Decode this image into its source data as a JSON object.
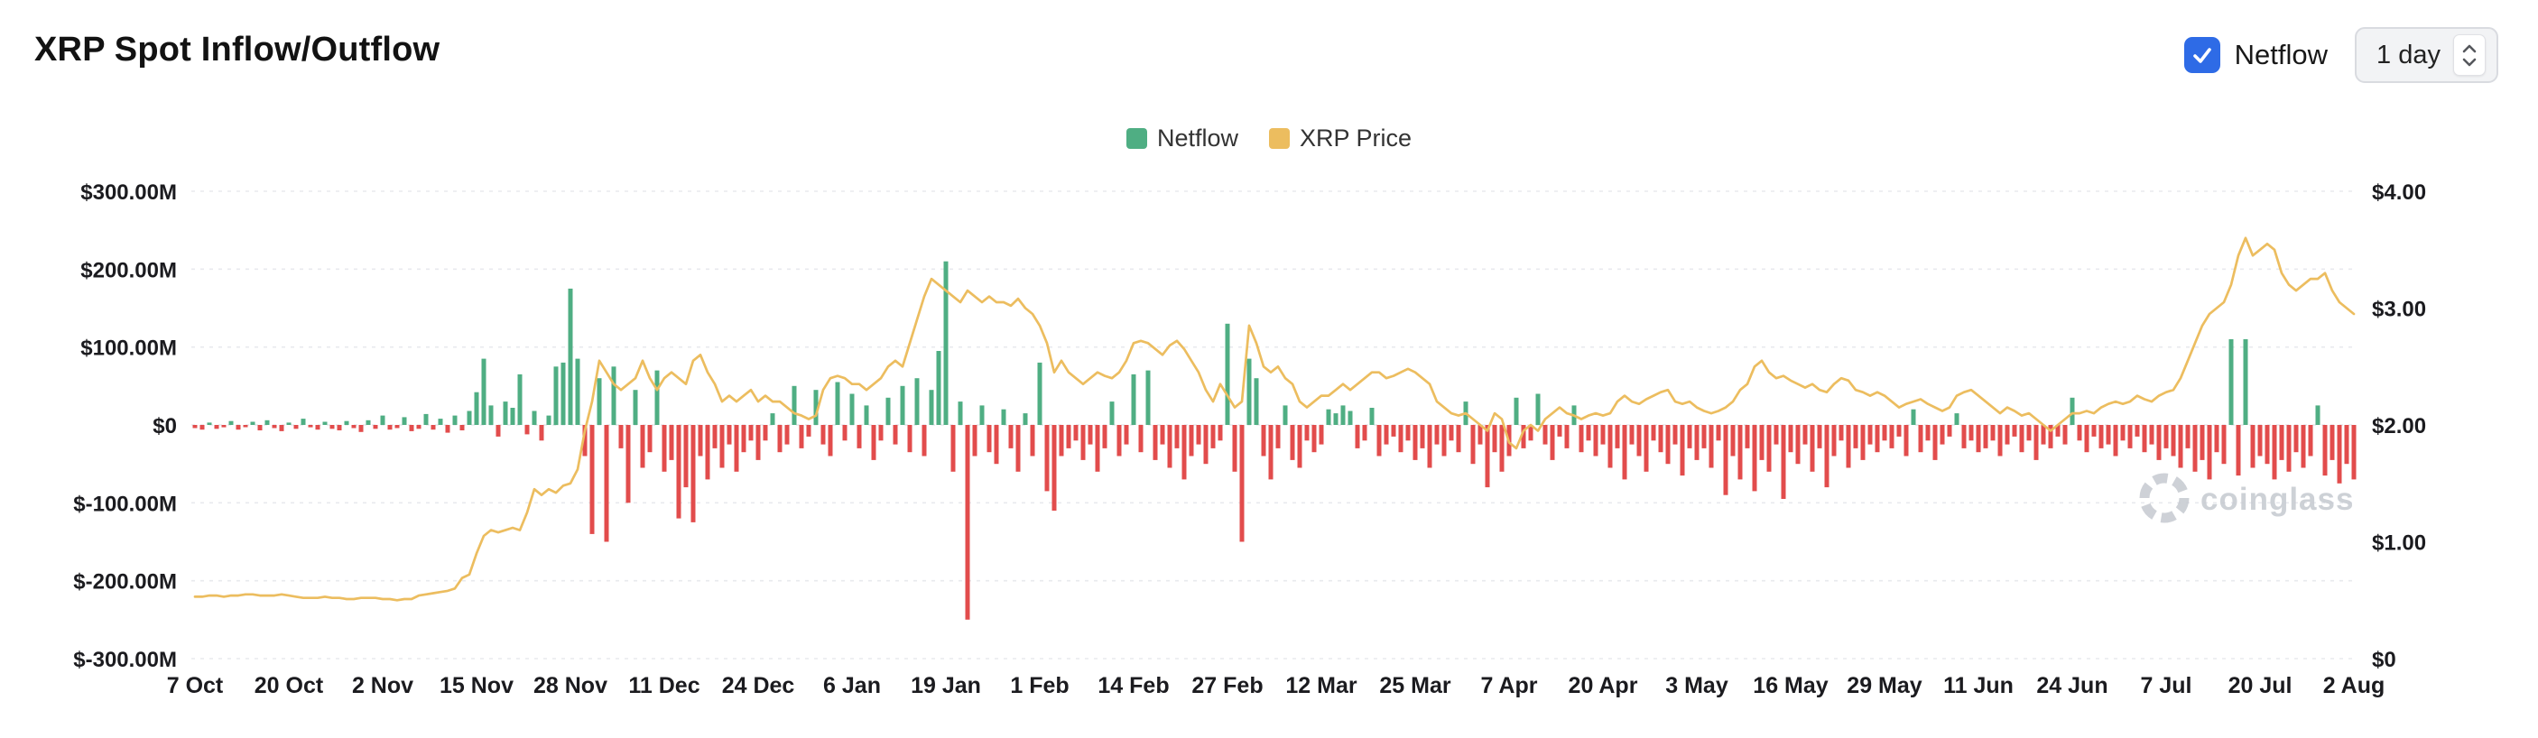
{
  "header": {
    "title": "XRP Spot Inflow/Outflow",
    "netflow_toggle": {
      "label": "Netflow",
      "checked": true
    },
    "interval_select": {
      "value": "1 day"
    }
  },
  "legend": [
    {
      "label": "Netflow",
      "color": "#4fae83"
    },
    {
      "label": "XRP Price",
      "color": "#ecbd5f"
    }
  ],
  "watermark": "coinglass",
  "colors": {
    "green": "#4fae83",
    "red": "#e24c4c",
    "yellow": "#ecbd5f",
    "checkbox_blue": "#2e6be6",
    "grid": "#e8eaee",
    "axis_text": "#1b1b1f",
    "watermark_gray": "#c5c9d0"
  },
  "chart_data": {
    "type": "bar+line",
    "title": "XRP Spot Inflow/Outflow",
    "x_unit": "day",
    "x_tick_labels": [
      "7 Oct",
      "20 Oct",
      "2 Nov",
      "15 Nov",
      "28 Nov",
      "11 Dec",
      "24 Dec",
      "6 Jan",
      "19 Jan",
      "1 Feb",
      "14 Feb",
      "27 Feb",
      "12 Mar",
      "25 Mar",
      "7 Apr",
      "20 Apr",
      "3 May",
      "16 May",
      "29 May",
      "11 Jun",
      "24 Jun",
      "7 Jul",
      "20 Jul",
      "2 Aug"
    ],
    "left_axis": {
      "range": [
        -300,
        300
      ],
      "ticks": [
        300,
        200,
        100,
        0,
        -100,
        -200,
        -300
      ],
      "labels": [
        "$300.00M",
        "$200.00M",
        "$100.00M",
        "$0",
        "$-100.00M",
        "$-200.00M",
        "$-300.00M"
      ],
      "unit": "USD (millions)"
    },
    "right_axis": {
      "range": [
        0,
        4
      ],
      "ticks": [
        4,
        3,
        2,
        1,
        0
      ],
      "labels": [
        "$4.00",
        "$3.00",
        "$2.00",
        "$1.00",
        "$0"
      ],
      "unit": "USD"
    },
    "grid": "dashed horizontal",
    "legend_position": "top center",
    "series": [
      {
        "name": "Netflow",
        "type": "bar",
        "axis": "left",
        "color_positive": "#4fae83",
        "color_negative": "#e24c4c",
        "values": [
          -4,
          -6,
          3,
          -5,
          -3,
          5,
          -6,
          -2,
          4,
          -7,
          6,
          -4,
          -8,
          3,
          -5,
          8,
          -3,
          -6,
          4,
          -5,
          -7,
          5,
          -4,
          -9,
          6,
          -5,
          12,
          -6,
          -4,
          10,
          -8,
          -5,
          14,
          -6,
          8,
          -10,
          12,
          -7,
          18,
          42,
          85,
          25,
          -15,
          30,
          22,
          65,
          -12,
          18,
          -20,
          12,
          75,
          80,
          175,
          85,
          -40,
          -140,
          60,
          -150,
          75,
          -30,
          -100,
          45,
          -55,
          -35,
          70,
          -60,
          -45,
          -120,
          -80,
          -125,
          -40,
          -70,
          -30,
          -55,
          -25,
          -60,
          -35,
          -20,
          -45,
          -20,
          15,
          -35,
          -25,
          50,
          -30,
          -15,
          45,
          -25,
          -40,
          55,
          -20,
          40,
          -30,
          25,
          -45,
          -20,
          35,
          -25,
          50,
          -35,
          60,
          -40,
          45,
          95,
          210,
          -60,
          30,
          -250,
          -40,
          25,
          -35,
          -50,
          20,
          -30,
          -60,
          15,
          -40,
          80,
          -85,
          -110,
          -40,
          -30,
          -20,
          -45,
          -25,
          -60,
          -30,
          30,
          -40,
          -25,
          65,
          -35,
          70,
          -45,
          -25,
          -55,
          -30,
          -70,
          -40,
          -25,
          -50,
          -30,
          -20,
          130,
          -60,
          -150,
          85,
          60,
          -40,
          -70,
          -30,
          25,
          -45,
          -55,
          -20,
          -35,
          -25,
          20,
          15,
          25,
          18,
          -30,
          -20,
          22,
          -40,
          -25,
          -15,
          -35,
          -20,
          -45,
          -30,
          -55,
          -25,
          -40,
          -20,
          -35,
          30,
          -50,
          -25,
          -80,
          -35,
          -60,
          -40,
          35,
          -30,
          -20,
          40,
          -25,
          -45,
          -15,
          -30,
          25,
          -35,
          -20,
          -40,
          -25,
          -55,
          -30,
          -70,
          -25,
          -40,
          -60,
          -20,
          -35,
          -50,
          -25,
          -65,
          -30,
          -45,
          -30,
          -55,
          -20,
          -90,
          -40,
          -70,
          -30,
          -85,
          -45,
          -60,
          -25,
          -95,
          -35,
          -50,
          -25,
          -60,
          -30,
          -80,
          -40,
          -20,
          -55,
          -30,
          -45,
          -25,
          -35,
          -20,
          -30,
          -15,
          -40,
          20,
          -35,
          -20,
          -45,
          -25,
          -15,
          15,
          -30,
          -20,
          -35,
          -30,
          -20,
          -40,
          -25,
          -15,
          -35,
          -20,
          -45,
          -25,
          -30,
          -15,
          -25,
          35,
          -20,
          -35,
          -15,
          -30,
          -25,
          -40,
          -20,
          -30,
          -15,
          -35,
          -25,
          -45,
          -30,
          -40,
          -55,
          -30,
          -60,
          -45,
          -70,
          -35,
          -50,
          110,
          -65,
          110,
          -55,
          -40,
          -50,
          -70,
          -45,
          -60,
          -35,
          -55,
          -40,
          25,
          -65,
          -45,
          -75,
          -50,
          -70
        ]
      },
      {
        "name": "XRP Price",
        "type": "line",
        "axis": "right",
        "color": "#ecbd5f",
        "values": [
          0.53,
          0.53,
          0.54,
          0.54,
          0.53,
          0.54,
          0.54,
          0.55,
          0.55,
          0.54,
          0.54,
          0.54,
          0.55,
          0.54,
          0.53,
          0.52,
          0.52,
          0.52,
          0.53,
          0.52,
          0.52,
          0.51,
          0.51,
          0.52,
          0.52,
          0.52,
          0.51,
          0.51,
          0.5,
          0.51,
          0.51,
          0.54,
          0.55,
          0.56,
          0.57,
          0.58,
          0.6,
          0.69,
          0.72,
          0.9,
          1.05,
          1.1,
          1.08,
          1.1,
          1.12,
          1.1,
          1.25,
          1.45,
          1.4,
          1.45,
          1.42,
          1.48,
          1.5,
          1.62,
          1.95,
          2.2,
          2.55,
          2.45,
          2.35,
          2.3,
          2.35,
          2.4,
          2.55,
          2.4,
          2.3,
          2.4,
          2.45,
          2.4,
          2.35,
          2.55,
          2.6,
          2.45,
          2.35,
          2.2,
          2.25,
          2.2,
          2.25,
          2.3,
          2.2,
          2.25,
          2.2,
          2.2,
          2.15,
          2.1,
          2.08,
          2.05,
          2.08,
          2.3,
          2.4,
          2.42,
          2.4,
          2.35,
          2.35,
          2.3,
          2.35,
          2.4,
          2.5,
          2.55,
          2.5,
          2.7,
          2.9,
          3.1,
          3.25,
          3.2,
          3.15,
          3.1,
          3.05,
          3.15,
          3.1,
          3.05,
          3.1,
          3.05,
          3.05,
          3.02,
          3.08,
          3.0,
          2.95,
          2.85,
          2.7,
          2.45,
          2.55,
          2.45,
          2.4,
          2.35,
          2.4,
          2.45,
          2.42,
          2.4,
          2.45,
          2.55,
          2.7,
          2.72,
          2.7,
          2.65,
          2.6,
          2.68,
          2.72,
          2.65,
          2.55,
          2.45,
          2.3,
          2.2,
          2.35,
          2.25,
          2.15,
          2.2,
          2.85,
          2.7,
          2.5,
          2.45,
          2.5,
          2.4,
          2.35,
          2.2,
          2.15,
          2.2,
          2.25,
          2.25,
          2.3,
          2.35,
          2.3,
          2.35,
          2.4,
          2.45,
          2.45,
          2.4,
          2.42,
          2.45,
          2.48,
          2.45,
          2.4,
          2.35,
          2.2,
          2.15,
          2.1,
          2.08,
          2.1,
          2.05,
          2.0,
          1.95,
          2.1,
          2.05,
          1.85,
          1.8,
          1.95,
          2.0,
          1.95,
          2.05,
          2.1,
          2.15,
          2.1,
          2.08,
          2.05,
          2.08,
          2.1,
          2.08,
          2.1,
          2.2,
          2.25,
          2.2,
          2.18,
          2.22,
          2.25,
          2.28,
          2.3,
          2.2,
          2.18,
          2.2,
          2.15,
          2.12,
          2.1,
          2.12,
          2.15,
          2.2,
          2.3,
          2.35,
          2.5,
          2.55,
          2.45,
          2.4,
          2.42,
          2.38,
          2.35,
          2.32,
          2.35,
          2.3,
          2.28,
          2.35,
          2.4,
          2.38,
          2.3,
          2.28,
          2.25,
          2.28,
          2.25,
          2.2,
          2.15,
          2.18,
          2.2,
          2.22,
          2.18,
          2.15,
          2.12,
          2.15,
          2.25,
          2.28,
          2.3,
          2.25,
          2.2,
          2.15,
          2.1,
          2.15,
          2.12,
          2.08,
          2.1,
          2.05,
          2.0,
          1.95,
          2.0,
          2.05,
          2.1,
          2.1,
          2.12,
          2.1,
          2.15,
          2.18,
          2.2,
          2.18,
          2.2,
          2.25,
          2.22,
          2.2,
          2.25,
          2.28,
          2.3,
          2.4,
          2.55,
          2.7,
          2.85,
          2.95,
          3.0,
          3.05,
          3.2,
          3.45,
          3.6,
          3.45,
          3.5,
          3.55,
          3.5,
          3.3,
          3.2,
          3.15,
          3.2,
          3.25,
          3.25,
          3.3,
          3.15,
          3.05,
          3.0,
          2.95
        ]
      }
    ]
  }
}
